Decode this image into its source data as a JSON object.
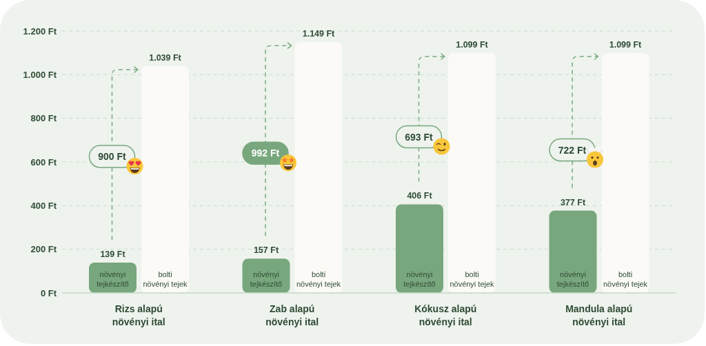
{
  "chart_data": {
    "type": "bar",
    "categories": [
      "Rizs alapú növényi ital",
      "Zab alapú növényi ital",
      "Kókusz alapú növényi ital",
      "Mandula alapú növényi ital"
    ],
    "series": [
      {
        "name": "növényi tejkészítő",
        "color": "#78a77d",
        "values": [
          139,
          157,
          406,
          377
        ],
        "value_labels": [
          "139 Ft",
          "157 Ft",
          "406 Ft",
          "377 Ft"
        ]
      },
      {
        "name": "bolti növényi tejek",
        "color": "#fbfaf6",
        "values": [
          1039,
          1149,
          1099,
          1099
        ],
        "value_labels": [
          "1.039 Ft",
          "1.149 Ft",
          "1.099 Ft",
          "1.099 Ft"
        ]
      }
    ],
    "ylim": [
      0,
      1200
    ],
    "yticks": [
      {
        "value": 0,
        "label": "0 Ft"
      },
      {
        "value": 200,
        "label": "200 Ft"
      },
      {
        "value": 400,
        "label": "400 Ft"
      },
      {
        "value": 600,
        "label": "600 Ft"
      },
      {
        "value": 800,
        "label": "800 Ft"
      },
      {
        "value": 1000,
        "label": "1.000 Ft"
      },
      {
        "value": 1200,
        "label": "1.200 Ft"
      }
    ],
    "grid": "y",
    "annotations": [
      {
        "text": "900 Ft",
        "x": "Rizs alapú növényi ital",
        "y": 625
      },
      {
        "text": "992 Ft",
        "x": "Zab alapú növényi ital",
        "y": 640
      },
      {
        "text": "693 Ft",
        "x": "Kókusz alapú növényi ital",
        "y": 715
      },
      {
        "text": "722 Ft",
        "x": "Mandula alapú növényi ital",
        "y": 655
      }
    ]
  }
}
